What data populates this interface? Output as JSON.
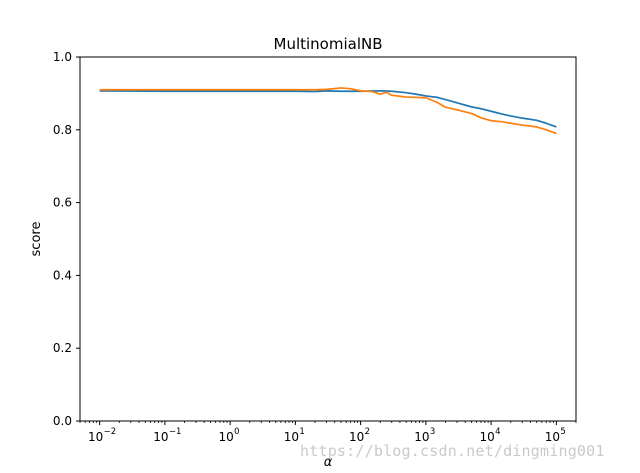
{
  "chart_data": {
    "type": "line",
    "title": "MultinomialNB",
    "xlabel": "α",
    "ylabel": "score",
    "xscale": "log",
    "xlim": [
      0.005,
      200000
    ],
    "ylim": [
      0.0,
      1.0
    ],
    "x_ticks": [
      {
        "value": 0.01,
        "base": "10",
        "exp": "−2"
      },
      {
        "value": 0.1,
        "base": "10",
        "exp": "−1"
      },
      {
        "value": 1,
        "base": "10",
        "exp": "0"
      },
      {
        "value": 10,
        "base": "10",
        "exp": "1"
      },
      {
        "value": 100,
        "base": "10",
        "exp": "2"
      },
      {
        "value": 1000,
        "base": "10",
        "exp": "3"
      },
      {
        "value": 10000,
        "base": "10",
        "exp": "4"
      },
      {
        "value": 100000,
        "base": "10",
        "exp": "5"
      }
    ],
    "y_ticks": [
      "0.0",
      "0.2",
      "0.4",
      "0.6",
      "0.8",
      "1.0"
    ],
    "grid": false,
    "legend": "none",
    "series": [
      {
        "color": "#1f77b4",
        "x": [
          0.01,
          0.1,
          1,
          10,
          20,
          30,
          50,
          100,
          200,
          300,
          500,
          700,
          1000,
          1500,
          2000,
          3000,
          5000,
          7000,
          10000,
          15000,
          20000,
          30000,
          50000,
          70000,
          100000
        ],
        "y": [
          0.907,
          0.906,
          0.906,
          0.906,
          0.905,
          0.907,
          0.906,
          0.906,
          0.907,
          0.906,
          0.902,
          0.898,
          0.893,
          0.889,
          0.883,
          0.874,
          0.863,
          0.858,
          0.851,
          0.843,
          0.838,
          0.832,
          0.826,
          0.818,
          0.808
        ]
      },
      {
        "color": "#ff7f0e",
        "x": [
          0.01,
          0.1,
          1,
          10,
          20,
          30,
          50,
          70,
          100,
          150,
          200,
          250,
          300,
          500,
          1000,
          1500,
          2000,
          3000,
          5000,
          7000,
          10000,
          15000,
          20000,
          30000,
          50000,
          70000,
          100000
        ],
        "y": [
          0.91,
          0.91,
          0.91,
          0.91,
          0.91,
          0.911,
          0.915,
          0.913,
          0.907,
          0.905,
          0.898,
          0.903,
          0.895,
          0.89,
          0.888,
          0.875,
          0.862,
          0.855,
          0.845,
          0.833,
          0.825,
          0.822,
          0.818,
          0.813,
          0.808,
          0.8,
          0.79
        ]
      }
    ]
  },
  "watermark": "https://blog.csdn.net/dingming001"
}
